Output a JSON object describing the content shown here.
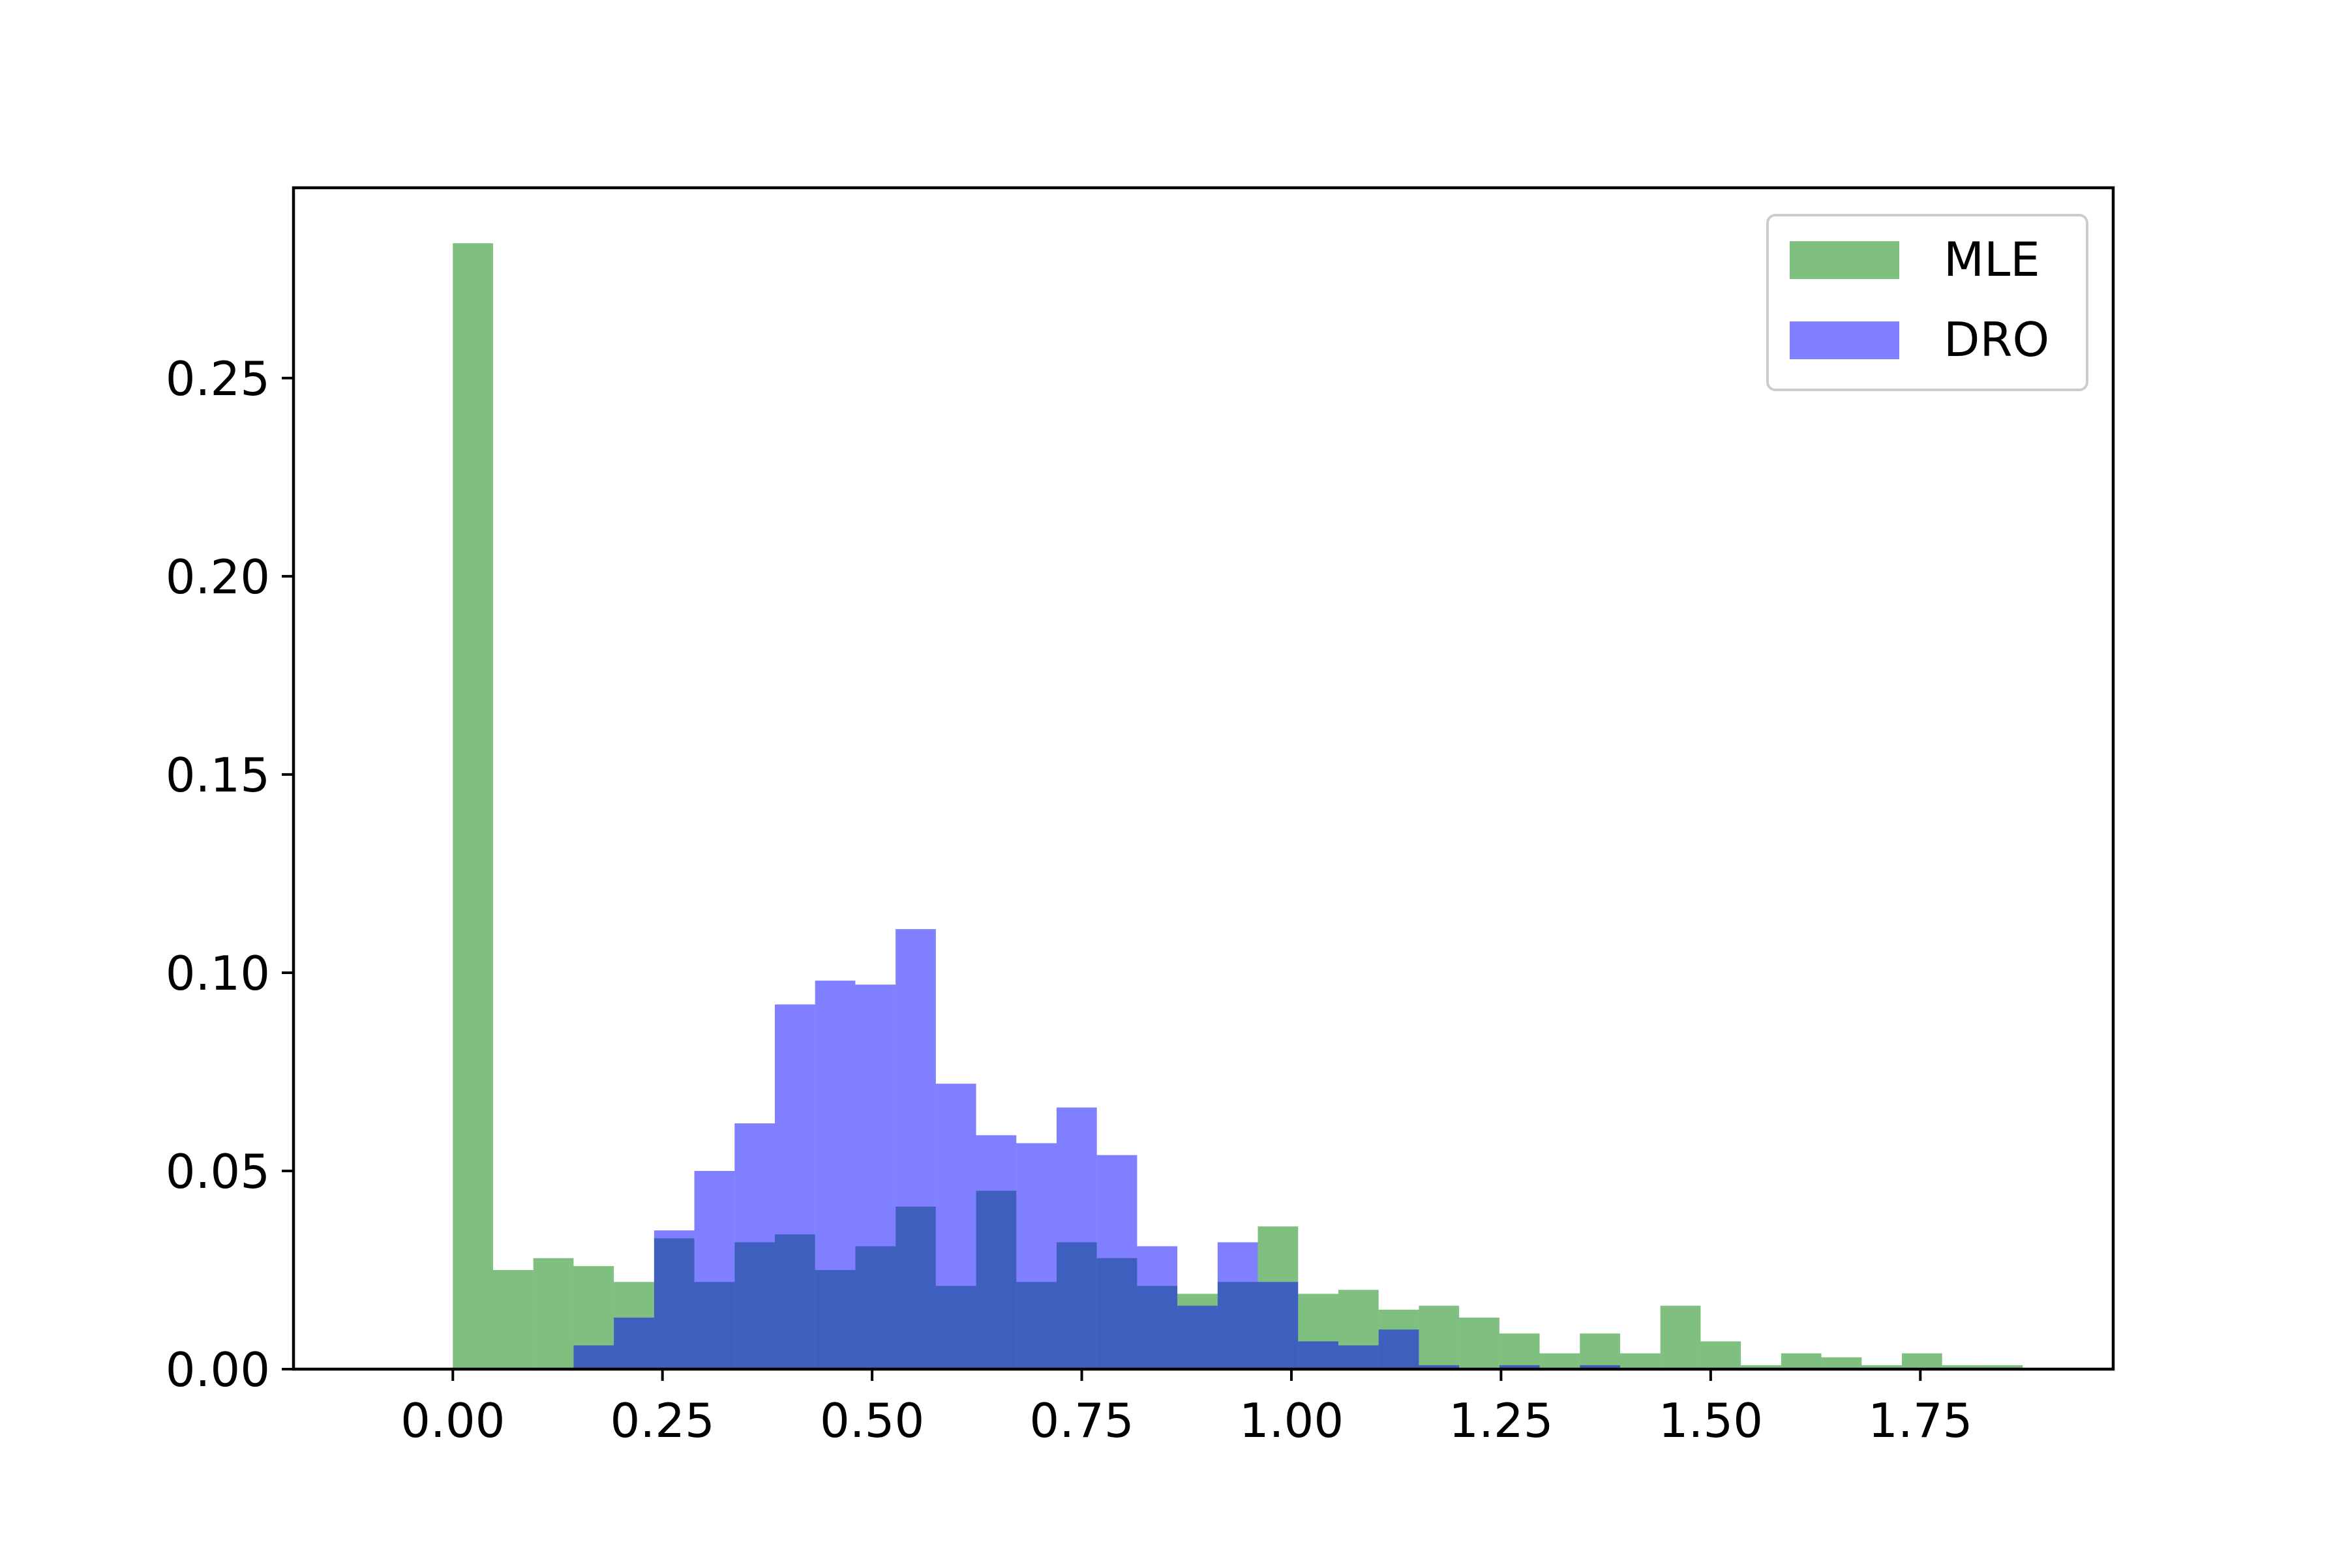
{
  "chart_data": {
    "type": "bar",
    "subtype": "overlaid-histogram",
    "title": "",
    "xlabel": "",
    "ylabel": "",
    "xlim": [
      -0.19,
      1.98
    ],
    "ylim": [
      0,
      0.298
    ],
    "xticks": [
      0.0,
      0.25,
      0.5,
      0.75,
      1.0,
      1.25,
      1.5,
      1.75
    ],
    "xtick_labels": [
      "0.00",
      "0.25",
      "0.50",
      "0.75",
      "1.00",
      "1.25",
      "1.50",
      "1.75"
    ],
    "yticks": [
      0.0,
      0.05,
      0.1,
      0.15,
      0.2,
      0.25
    ],
    "ytick_labels": [
      "0.00",
      "0.05",
      "0.10",
      "0.15",
      "0.20",
      "0.25"
    ],
    "grid": false,
    "legend_position": "top-right",
    "series": [
      {
        "name": "MLE",
        "color": "#008000",
        "alpha": 0.5,
        "bin_start": 0.0,
        "bin_width": 0.048,
        "values": [
          0.284,
          0.025,
          0.028,
          0.026,
          0.022,
          0.033,
          0.022,
          0.032,
          0.034,
          0.025,
          0.031,
          0.041,
          0.021,
          0.045,
          0.022,
          0.032,
          0.028,
          0.021,
          0.019,
          0.022,
          0.036,
          0.019,
          0.02,
          0.015,
          0.016,
          0.013,
          0.009,
          0.004,
          0.009,
          0.004,
          0.016,
          0.007,
          0.001,
          0.004,
          0.003,
          0.001,
          0.004,
          0.001,
          0.001
        ]
      },
      {
        "name": "DRO",
        "color": "#0000ff",
        "alpha": 0.5,
        "bin_start": 0.144,
        "bin_width": 0.048,
        "values": [
          0.006,
          0.013,
          0.035,
          0.05,
          0.062,
          0.092,
          0.098,
          0.097,
          0.111,
          0.072,
          0.059,
          0.057,
          0.066,
          0.054,
          0.031,
          0.016,
          0.032,
          0.022,
          0.007,
          0.006,
          0.01,
          0.001,
          0.0,
          0.001,
          0.0,
          0.001
        ]
      }
    ]
  }
}
